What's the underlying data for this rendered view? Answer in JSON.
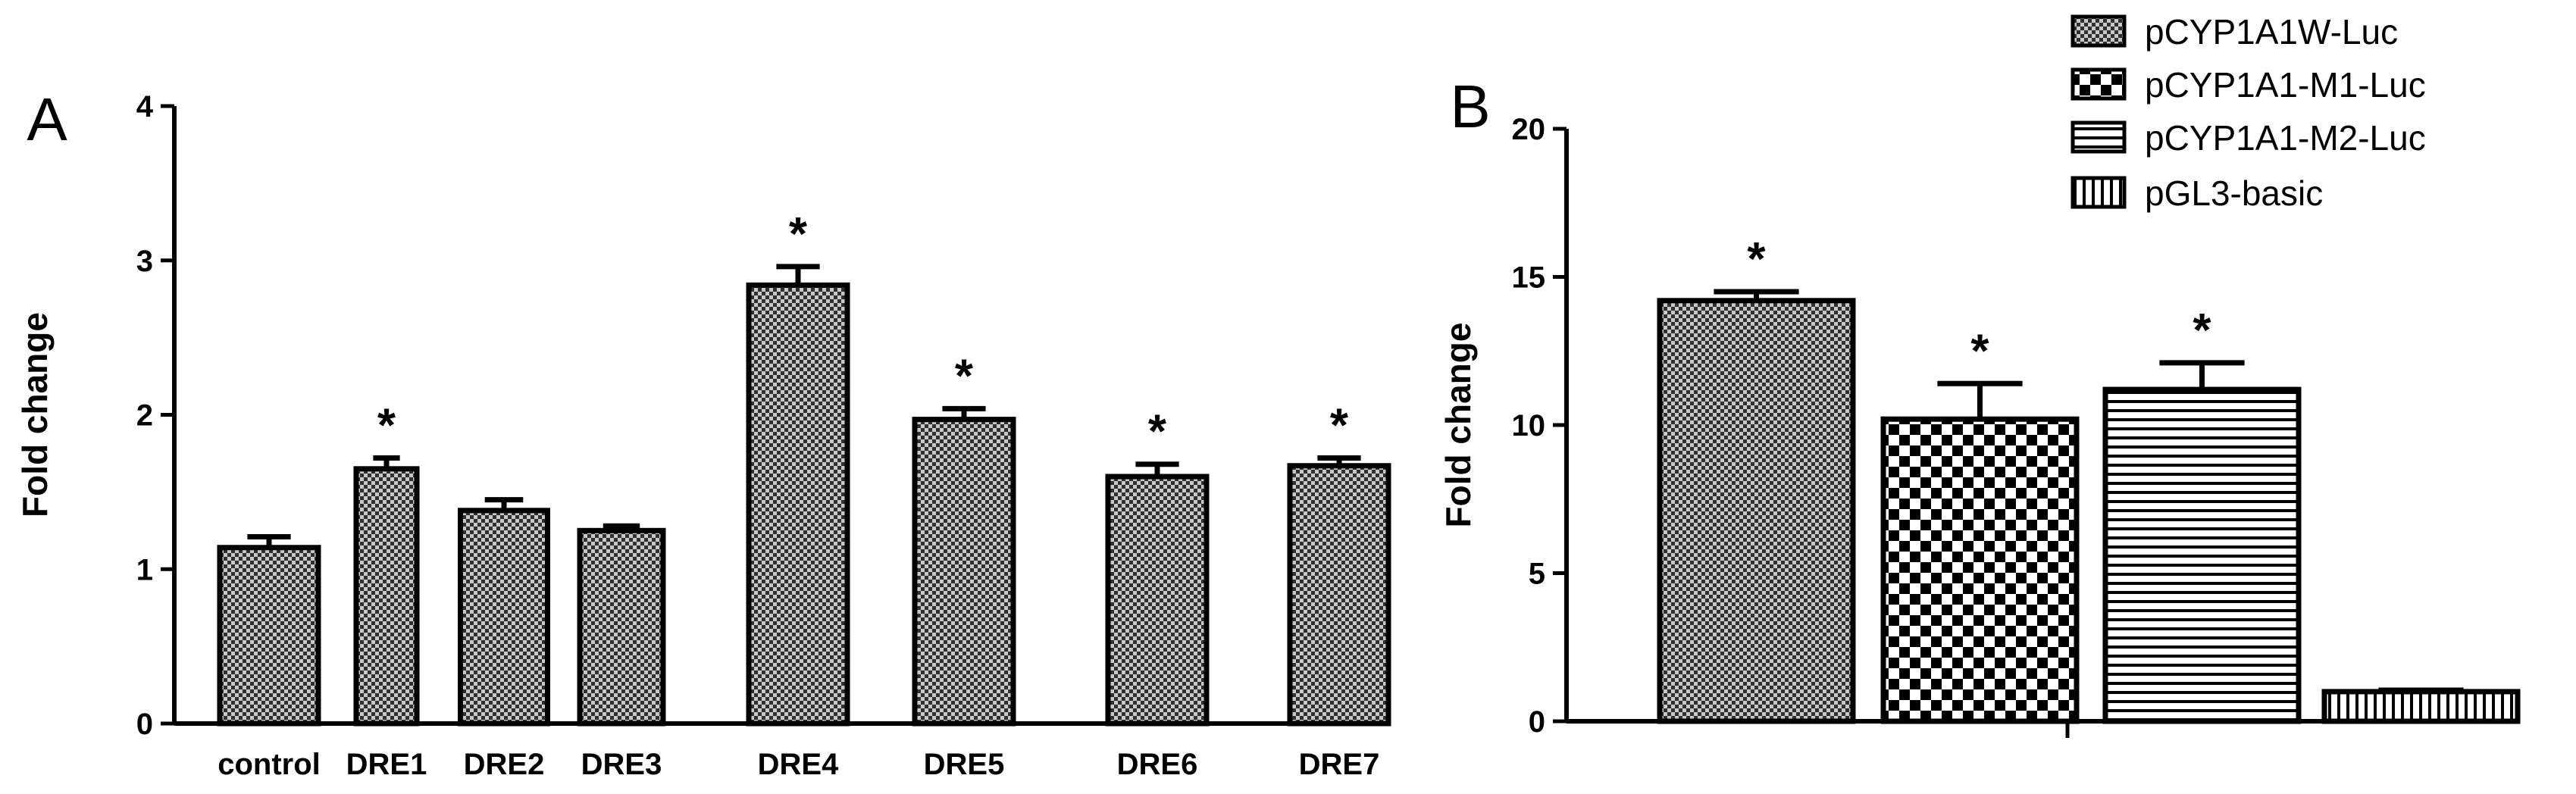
{
  "chart_data": [
    {
      "panel": "A",
      "type": "bar",
      "ylabel": "Fold change",
      "ylim": [
        0,
        4
      ],
      "yticks": [
        "0",
        "1",
        "2",
        "3",
        "4"
      ],
      "categories": [
        "control",
        "DRE1",
        "DRE2",
        "DRE3",
        "DRE4",
        "DRE5",
        "DRE6",
        "DRE7"
      ],
      "values": [
        1.14,
        1.65,
        1.38,
        1.25,
        2.84,
        1.97,
        1.6,
        1.67
      ],
      "errors": [
        0.07,
        0.07,
        0.07,
        0.03,
        0.12,
        0.07,
        0.08,
        0.05
      ],
      "significant": [
        false,
        true,
        false,
        false,
        true,
        true,
        true,
        true
      ],
      "significance_marker": "*",
      "pattern": "fine-checker"
    },
    {
      "panel": "B",
      "type": "bar",
      "ylabel": "Fold change",
      "ylim": [
        0,
        20
      ],
      "yticks": [
        "0",
        "5",
        "10",
        "15",
        "20"
      ],
      "series": [
        {
          "name": "pCYP1A1W-Luc",
          "value": 14.2,
          "error": 0.3,
          "significant": true,
          "pattern": "fine-checker"
        },
        {
          "name": "pCYP1A1-M1-Luc",
          "value": 10.2,
          "error": 1.2,
          "significant": true,
          "pattern": "coarse-checker"
        },
        {
          "name": "pCYP1A1-M2-Luc",
          "value": 11.2,
          "error": 0.9,
          "significant": true,
          "pattern": "horizontal-lines"
        },
        {
          "name": "pGL3-basic",
          "value": 1.0,
          "error": 0.05,
          "significant": false,
          "pattern": "vertical-lines"
        }
      ],
      "significance_marker": "*",
      "legend_position": "top-right"
    }
  ]
}
